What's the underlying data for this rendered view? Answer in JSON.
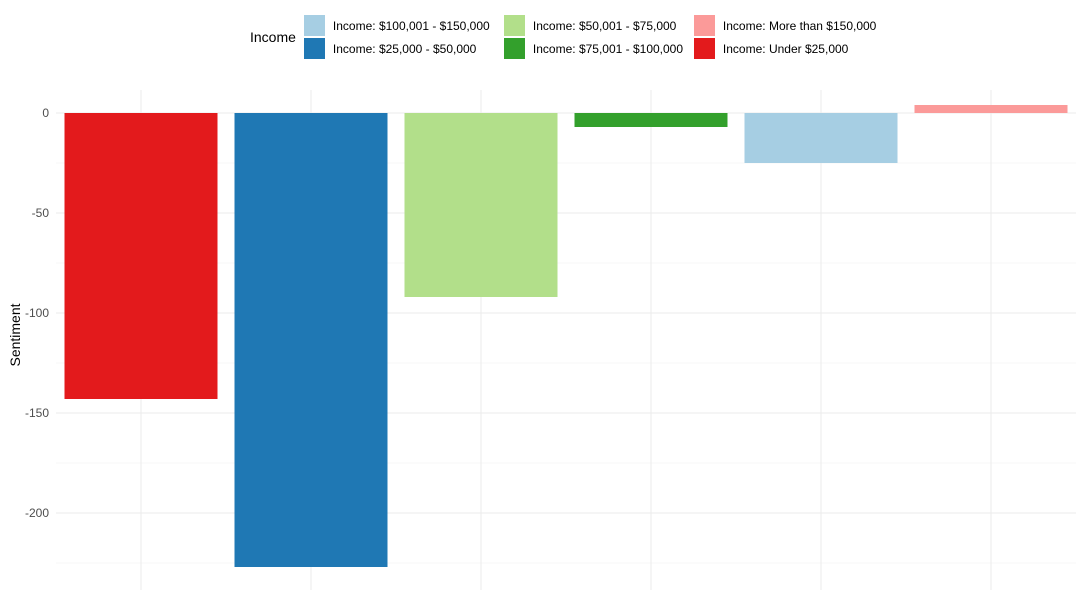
{
  "legend": {
    "title": "Income"
  },
  "chart_data": {
    "type": "bar",
    "ylabel": "Sentiment",
    "xlabel": "",
    "ylim": [
      -237,
      10
    ],
    "yticks": [
      0,
      -50,
      -100,
      -150,
      -200
    ],
    "grid": true,
    "legend_position": "top",
    "series": [
      {
        "name": "Income: Under $25,000",
        "value": -143,
        "color": "#E31A1C"
      },
      {
        "name": "Income: $25,000 - $50,000",
        "value": -227,
        "color": "#1F78B4"
      },
      {
        "name": "Income: $50,001 - $75,000",
        "value": -92,
        "color": "#B2DF8A"
      },
      {
        "name": "Income: $75,001 - $100,000",
        "value": -7,
        "color": "#33A02C"
      },
      {
        "name": "Income: $100,001 - $150,000",
        "value": -25,
        "color": "#A6CEE3"
      },
      {
        "name": "Income: More than $150,000",
        "value": 4,
        "color": "#FB9A99"
      }
    ],
    "legend_order": [
      "Income: $100,001 - $150,000",
      "Income: $50,001 - $75,000",
      "Income: More than $150,000",
      "Income: $25,000 - $50,000",
      "Income: $75,001 - $100,000",
      "Income: Under $25,000"
    ]
  }
}
